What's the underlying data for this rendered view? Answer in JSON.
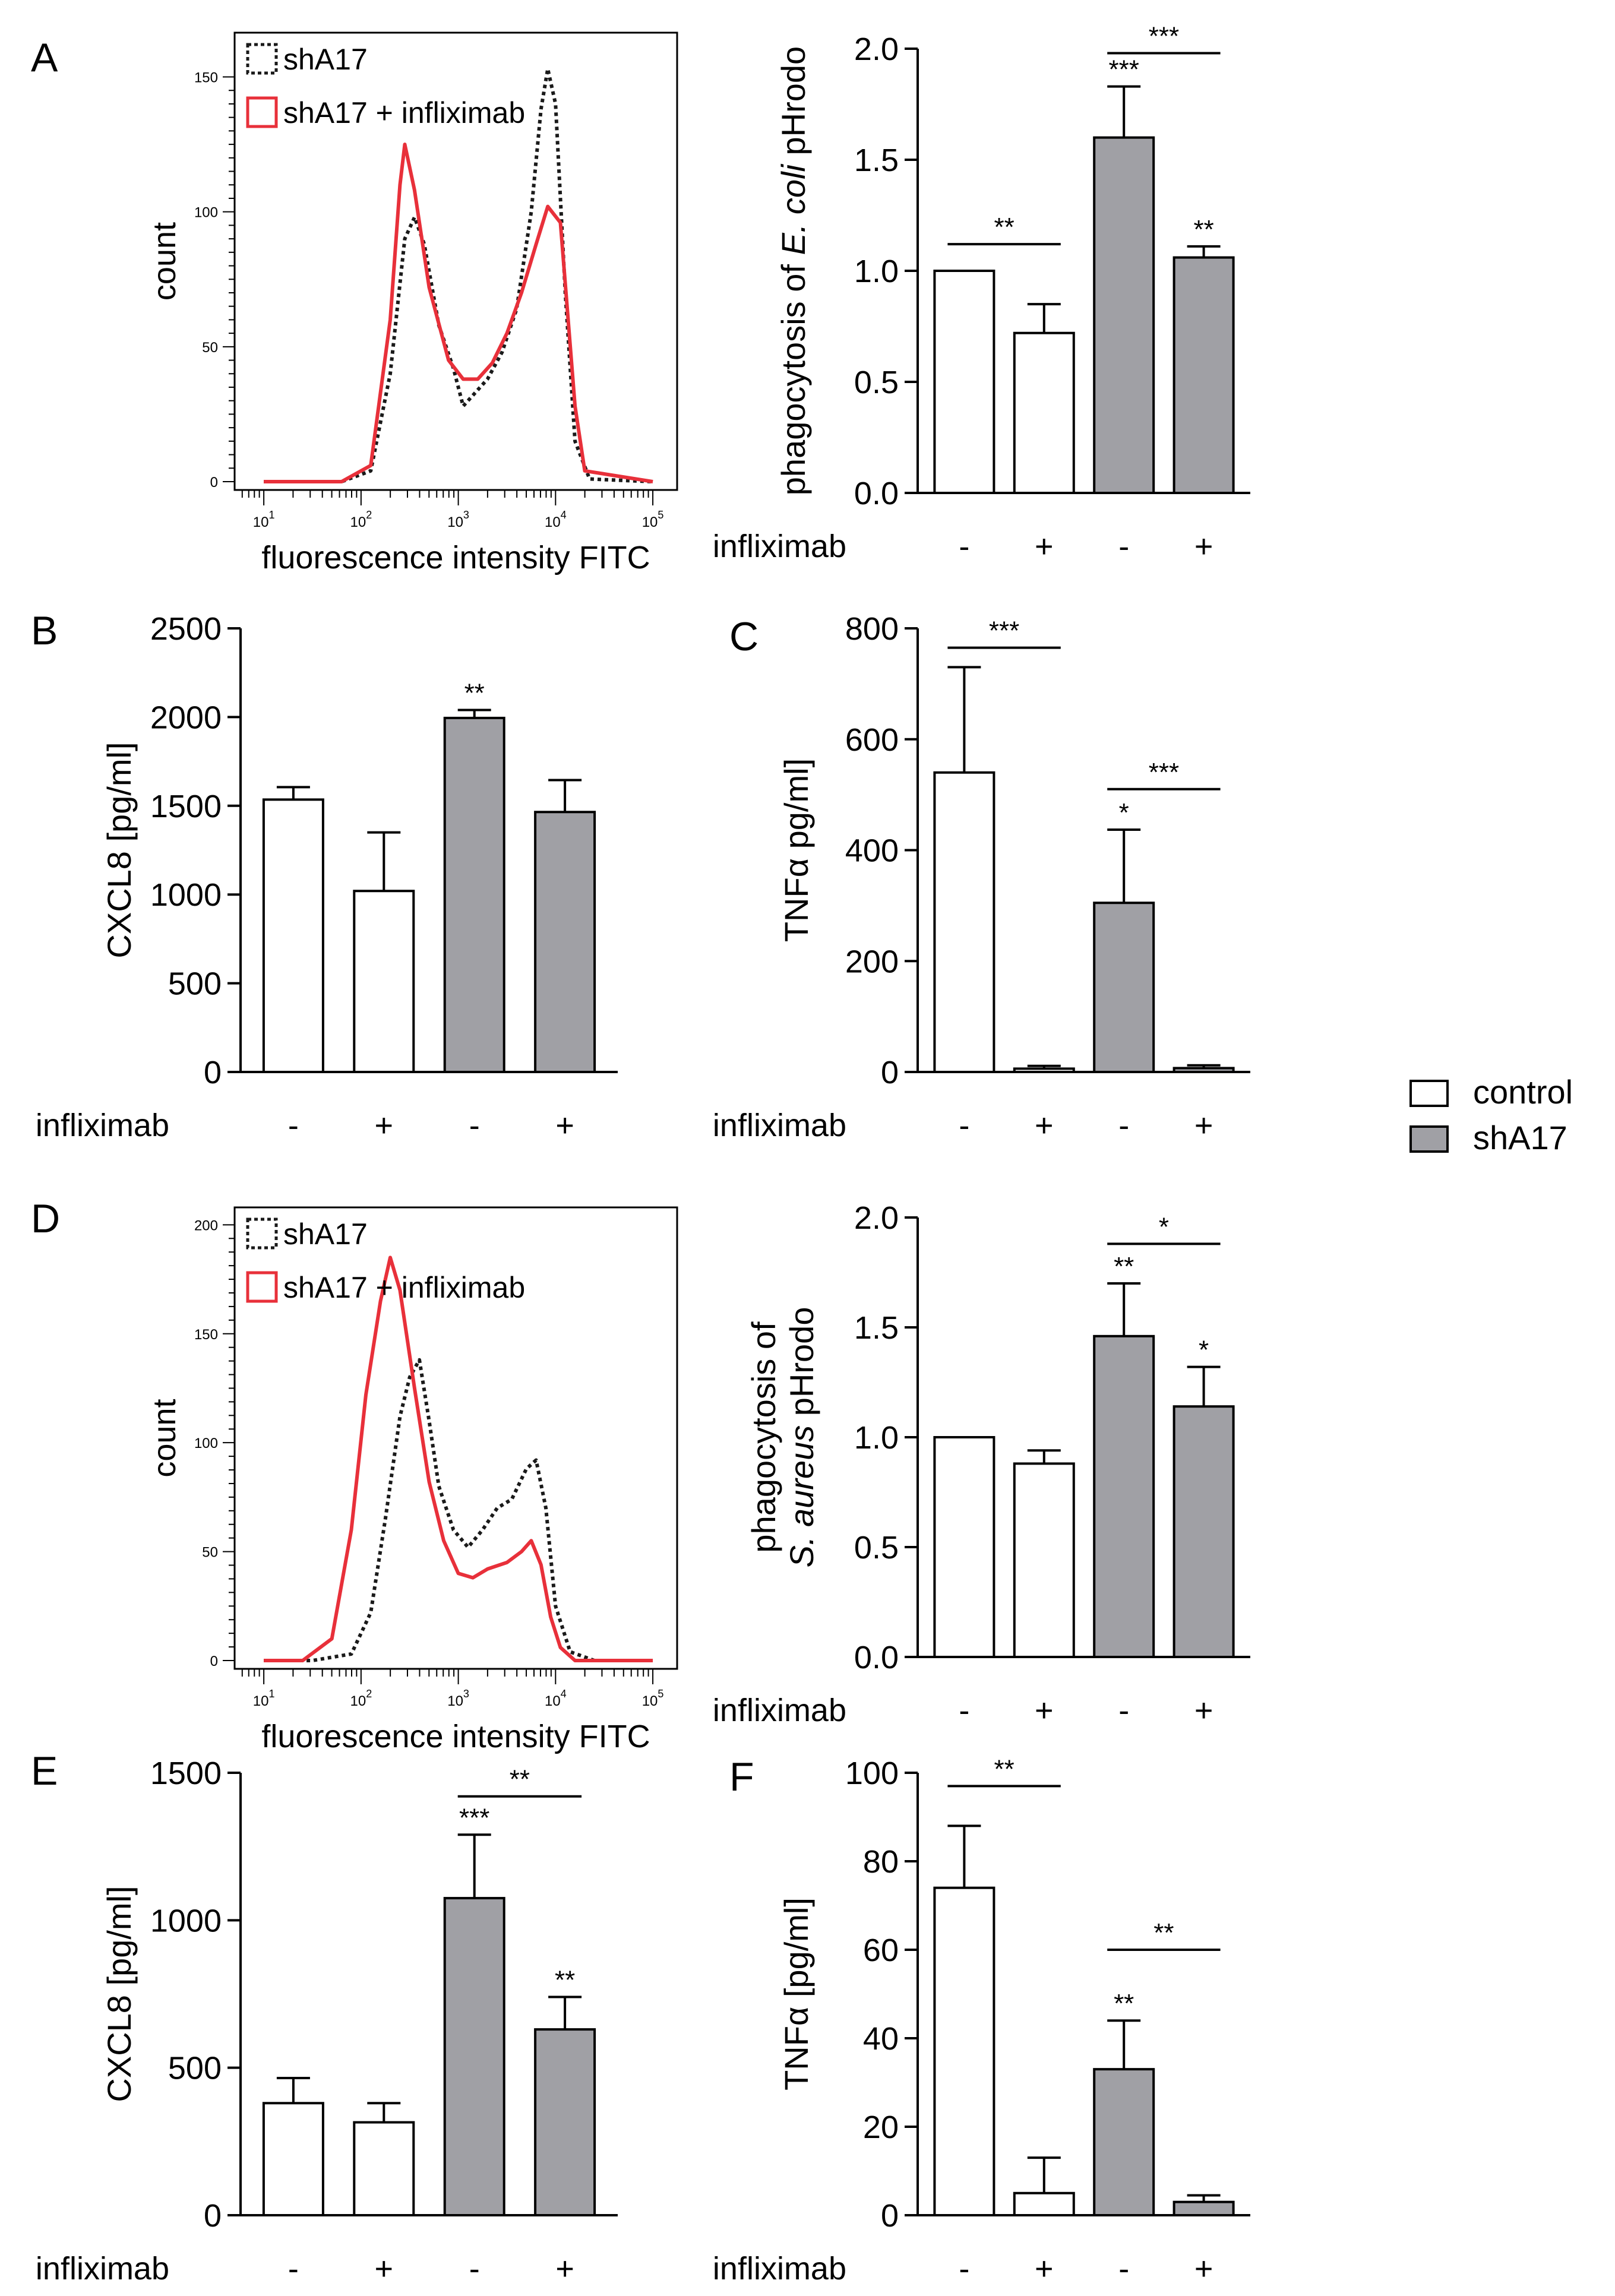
{
  "legend": {
    "items": [
      {
        "label": "control",
        "color": "#ffffff"
      },
      {
        "label": "shA17",
        "color": "#a0a0a5"
      }
    ]
  },
  "chart_data": [
    {
      "panel": "A",
      "type": "line",
      "xlabel": "fluorescence intensity FITC",
      "ylabel": "count",
      "x_scale": "log",
      "xticks": [
        "10^1",
        "10^2",
        "10^3",
        "10^4",
        "10^5"
      ],
      "ylim": [
        0,
        160
      ],
      "yticks": [
        0,
        50,
        100,
        150
      ],
      "series": [
        {
          "name": "shA17",
          "style": "dotted",
          "color": "#1a1a1a",
          "points": [
            [
              1,
              0
            ],
            [
              1.8,
              0
            ],
            [
              2.1,
              4
            ],
            [
              2.3,
              40
            ],
            [
              2.45,
              90
            ],
            [
              2.55,
              98
            ],
            [
              2.65,
              88
            ],
            [
              2.8,
              58
            ],
            [
              2.95,
              42
            ],
            [
              3.05,
              28
            ],
            [
              3.15,
              32
            ],
            [
              3.3,
              38
            ],
            [
              3.45,
              48
            ],
            [
              3.6,
              64
            ],
            [
              3.75,
              100
            ],
            [
              3.85,
              138
            ],
            [
              3.92,
              153
            ],
            [
              4.0,
              140
            ],
            [
              4.1,
              70
            ],
            [
              4.2,
              15
            ],
            [
              4.35,
              1
            ],
            [
              5,
              0
            ]
          ]
        },
        {
          "name": "shA17 + infliximab",
          "style": "solid",
          "color": "#e8303a",
          "points": [
            [
              1,
              0
            ],
            [
              1.8,
              0
            ],
            [
              2.1,
              6
            ],
            [
              2.3,
              60
            ],
            [
              2.4,
              110
            ],
            [
              2.45,
              125
            ],
            [
              2.55,
              108
            ],
            [
              2.7,
              72
            ],
            [
              2.9,
              45
            ],
            [
              3.05,
              38
            ],
            [
              3.2,
              38
            ],
            [
              3.35,
              44
            ],
            [
              3.5,
              55
            ],
            [
              3.65,
              70
            ],
            [
              3.8,
              88
            ],
            [
              3.92,
              102
            ],
            [
              4.05,
              96
            ],
            [
              4.2,
              28
            ],
            [
              4.3,
              4
            ],
            [
              5,
              0
            ]
          ]
        }
      ]
    },
    {
      "panel": "A2",
      "type": "bar",
      "ylabel_parts": [
        "phagocytosis of ",
        "E. coli",
        " pHrodo"
      ],
      "ylim": [
        0,
        2.0
      ],
      "yticks": [
        "0.0",
        "0.5",
        "1.0",
        "1.5",
        "2.0"
      ],
      "row_label": "infliximab",
      "categories": [
        "-",
        "+",
        "-",
        "+"
      ],
      "values": [
        1.0,
        0.72,
        1.6,
        1.06
      ],
      "errors": [
        0,
        0.13,
        0.23,
        0.05
      ],
      "groups": [
        "control",
        "control",
        "shA17",
        "shA17"
      ],
      "bar_stars": [
        "",
        "",
        "***",
        "**"
      ],
      "brackets": [
        {
          "from": 0,
          "to": 1,
          "value": 1.12,
          "label": "**"
        },
        {
          "from": 2,
          "to": 3,
          "value": 1.98,
          "label": "***"
        }
      ]
    },
    {
      "panel": "B",
      "type": "bar",
      "ylabel": "CXCL8 [pg/ml]",
      "ylim": [
        0,
        2500
      ],
      "yticks": [
        "0",
        "500",
        "1000",
        "1500",
        "2000",
        "2500"
      ],
      "row_label": "infliximab",
      "categories": [
        "-",
        "+",
        "-",
        "+"
      ],
      "values": [
        1535,
        1020,
        1995,
        1465
      ],
      "errors": [
        70,
        330,
        45,
        180
      ],
      "groups": [
        "control",
        "control",
        "shA17",
        "shA17"
      ],
      "bar_stars": [
        "",
        "",
        "**",
        ""
      ],
      "brackets": []
    },
    {
      "panel": "C",
      "type": "bar",
      "ylabel": "TNFα pg/ml]",
      "ylim": [
        0,
        800
      ],
      "yticks": [
        "0",
        "200",
        "400",
        "600",
        "800"
      ],
      "row_label": "infliximab",
      "categories": [
        "-",
        "+",
        "-",
        "+"
      ],
      "values": [
        540,
        6,
        305,
        7
      ],
      "errors": [
        190,
        5,
        132,
        5
      ],
      "groups": [
        "control",
        "control",
        "shA17",
        "shA17"
      ],
      "bar_stars": [
        "",
        "",
        "*",
        ""
      ],
      "brackets": [
        {
          "from": 0,
          "to": 1,
          "value": 765,
          "label": "***"
        },
        {
          "from": 2,
          "to": 3,
          "value": 510,
          "label": "***"
        }
      ]
    },
    {
      "panel": "D",
      "type": "line",
      "xlabel": "fluorescence intensity FITC",
      "ylabel": "count",
      "x_scale": "log",
      "xticks": [
        "10^1",
        "10^2",
        "10^3",
        "10^4",
        "10^5"
      ],
      "ylim": [
        0,
        200
      ],
      "yticks": [
        0,
        50,
        100,
        150,
        200
      ],
      "series": [
        {
          "name": "shA17",
          "style": "dotted",
          "color": "#1a1a1a",
          "points": [
            [
              1,
              0
            ],
            [
              1.5,
              0
            ],
            [
              1.9,
              3
            ],
            [
              2.1,
              22
            ],
            [
              2.25,
              65
            ],
            [
              2.4,
              112
            ],
            [
              2.5,
              130
            ],
            [
              2.6,
              138
            ],
            [
              2.7,
              110
            ],
            [
              2.8,
              80
            ],
            [
              2.95,
              60
            ],
            [
              3.1,
              52
            ],
            [
              3.25,
              60
            ],
            [
              3.4,
              70
            ],
            [
              3.55,
              74
            ],
            [
              3.7,
              88
            ],
            [
              3.8,
              92
            ],
            [
              3.9,
              70
            ],
            [
              4.0,
              25
            ],
            [
              4.15,
              4
            ],
            [
              4.4,
              0
            ],
            [
              5,
              0
            ]
          ]
        },
        {
          "name": "shA17 + infliximab",
          "style": "solid",
          "color": "#e8303a",
          "points": [
            [
              1,
              0
            ],
            [
              1.4,
              0
            ],
            [
              1.7,
              10
            ],
            [
              1.9,
              60
            ],
            [
              2.05,
              122
            ],
            [
              2.2,
              165
            ],
            [
              2.3,
              185
            ],
            [
              2.4,
              170
            ],
            [
              2.55,
              125
            ],
            [
              2.7,
              82
            ],
            [
              2.85,
              55
            ],
            [
              3.0,
              40
            ],
            [
              3.15,
              38
            ],
            [
              3.3,
              42
            ],
            [
              3.5,
              45
            ],
            [
              3.65,
              50
            ],
            [
              3.75,
              55
            ],
            [
              3.85,
              44
            ],
            [
              3.95,
              20
            ],
            [
              4.05,
              6
            ],
            [
              4.2,
              0
            ],
            [
              5,
              0
            ]
          ]
        }
      ]
    },
    {
      "panel": "D2",
      "type": "bar",
      "ylabel_line1": "phagocytosis of",
      "ylabel_line2_parts": [
        "S. aureus",
        " pHrodo"
      ],
      "ylim": [
        0,
        2.0
      ],
      "yticks": [
        "0.0",
        "0.5",
        "1.0",
        "1.5",
        "2.0"
      ],
      "row_label": "infliximab",
      "categories": [
        "-",
        "+",
        "-",
        "+"
      ],
      "values": [
        1.0,
        0.88,
        1.46,
        1.14
      ],
      "errors": [
        0,
        0.06,
        0.24,
        0.18
      ],
      "groups": [
        "control",
        "control",
        "shA17",
        "shA17"
      ],
      "bar_stars": [
        "",
        "",
        "**",
        "*"
      ],
      "brackets": [
        {
          "from": 2,
          "to": 3,
          "value": 1.88,
          "label": "*"
        }
      ]
    },
    {
      "panel": "E",
      "type": "bar",
      "ylabel": "CXCL8 [pg/ml]",
      "ylim": [
        0,
        1500
      ],
      "yticks": [
        "0",
        "500",
        "1000",
        "1500"
      ],
      "row_label": "infliximab",
      "categories": [
        "-",
        "+",
        "-",
        "+"
      ],
      "values": [
        380,
        315,
        1075,
        630
      ],
      "errors": [
        85,
        65,
        215,
        110
      ],
      "groups": [
        "control",
        "control",
        "shA17",
        "shA17"
      ],
      "bar_stars": [
        "",
        "",
        "***",
        "**"
      ],
      "brackets": [
        {
          "from": 2,
          "to": 3,
          "value": 1420,
          "label": "**"
        }
      ]
    },
    {
      "panel": "F",
      "type": "bar",
      "ylabel": "TNFα [pg/ml]",
      "ylim": [
        0,
        100
      ],
      "yticks": [
        "0",
        "20",
        "40",
        "60",
        "80",
        "100"
      ],
      "row_label": "infliximab",
      "categories": [
        "-",
        "+",
        "-",
        "+"
      ],
      "values": [
        74,
        5,
        33,
        3
      ],
      "errors": [
        14,
        8,
        11,
        1.5
      ],
      "groups": [
        "control",
        "control",
        "shA17",
        "shA17"
      ],
      "bar_stars": [
        "",
        "",
        "**",
        ""
      ],
      "brackets": [
        {
          "from": 0,
          "to": 1,
          "value": 97,
          "label": "**"
        },
        {
          "from": 2,
          "to": 3,
          "value": 60,
          "label": "**"
        }
      ]
    }
  ]
}
